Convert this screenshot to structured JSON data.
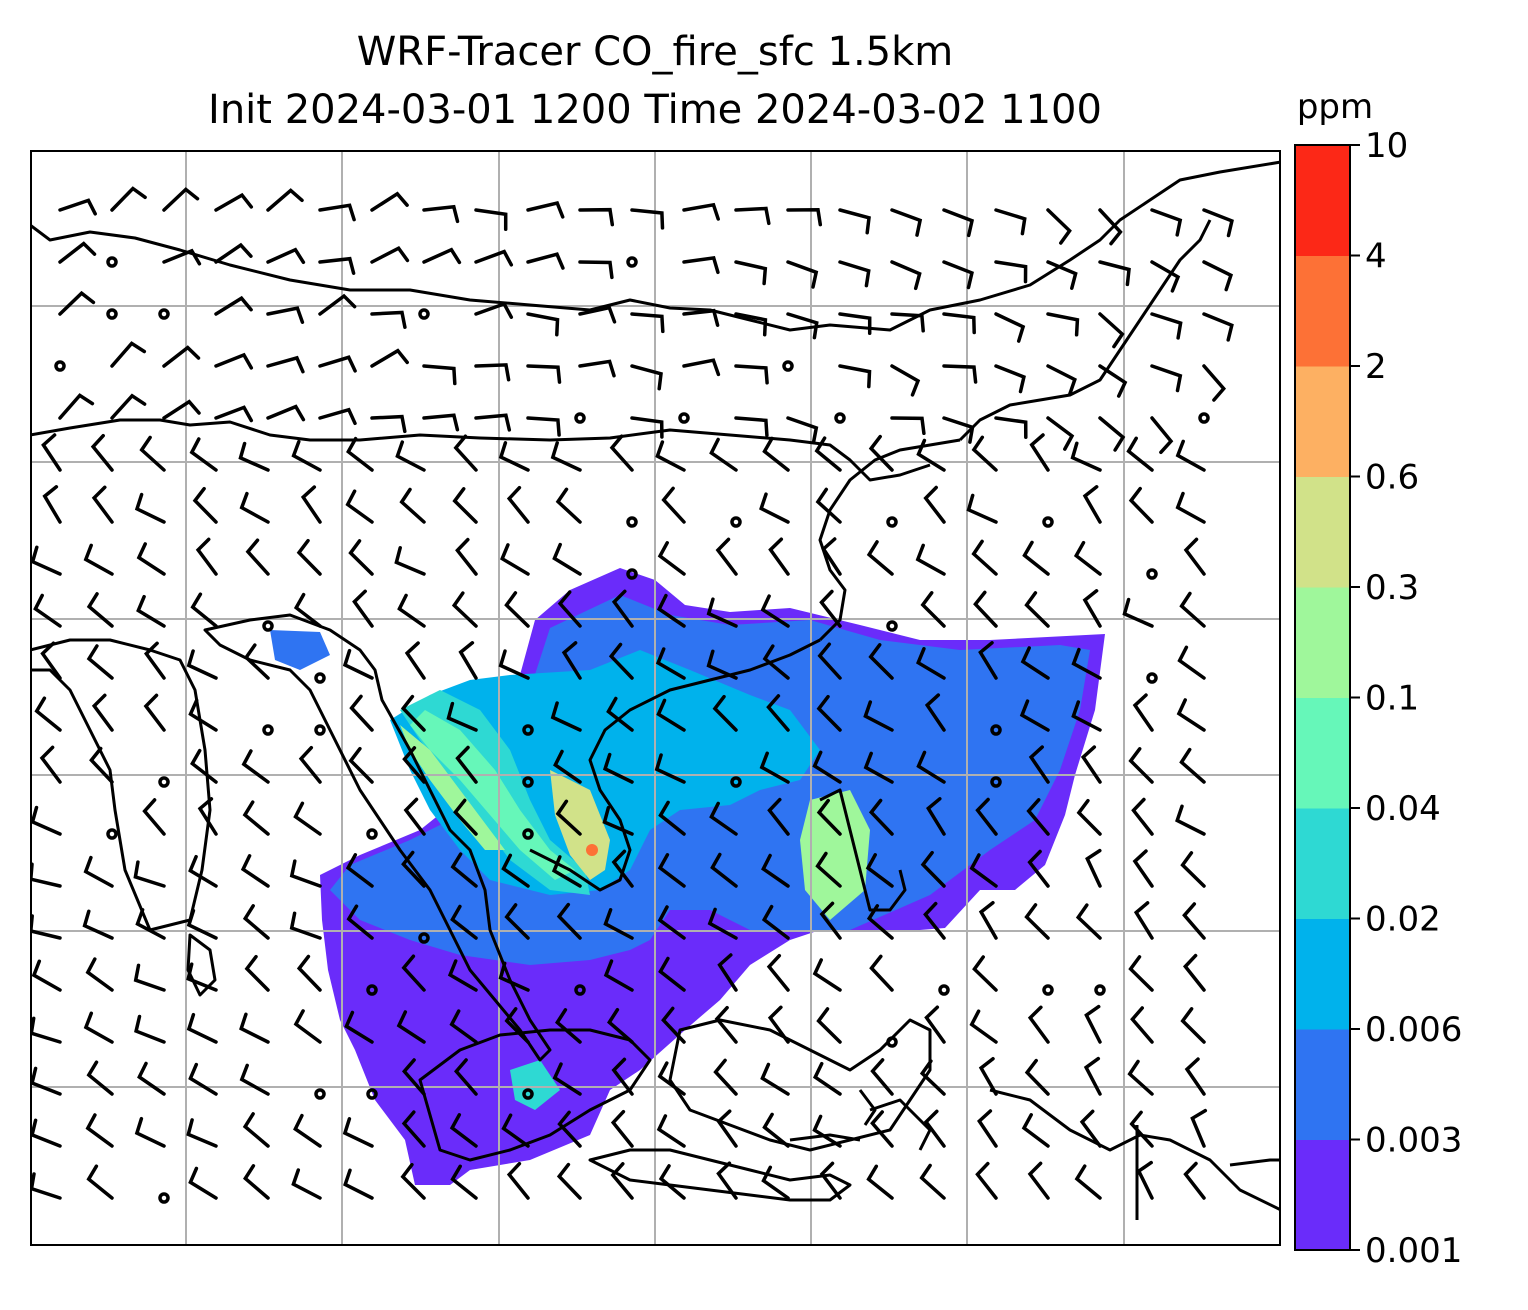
{
  "title": {
    "line1": "WRF-Tracer CO_fire_sfc 1.5km",
    "line2": "Init 2024-03-01 1200 Time 2024-03-02 1100"
  },
  "colorbar": {
    "unit": "ppm",
    "ticks": [
      "0.001",
      "0.003",
      "0.006",
      "0.02",
      "0.04",
      "0.1",
      "0.3",
      "0.6",
      "2",
      "4",
      "10"
    ],
    "colors": [
      "#6a2cfa",
      "#2f74f2",
      "#00b2ec",
      "#2ed9d3",
      "#66f7b9",
      "#9ff79b",
      "#d1e289",
      "#fdb062",
      "#fd7136",
      "#fc2817"
    ]
  },
  "map": {
    "gridlines": true,
    "colors": {
      "grid": "#b0b0b0",
      "coast": "#000000",
      "barb": "#000000"
    }
  }
}
